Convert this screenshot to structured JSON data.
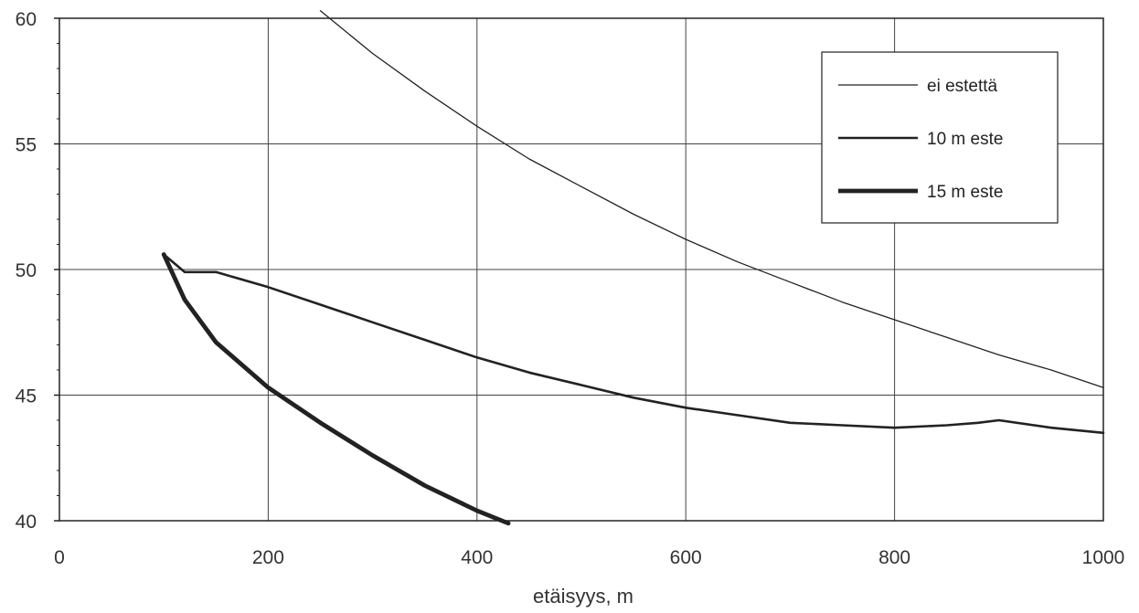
{
  "chart_data": {
    "type": "line",
    "xlabel": "etäisyys, m",
    "ylabel": "",
    "xlim": [
      0,
      1000
    ],
    "ylim": [
      40,
      60
    ],
    "x_ticks": [
      "0",
      "200",
      "400",
      "600",
      "800",
      "1000"
    ],
    "y_ticks": [
      "40",
      "45",
      "50",
      "55",
      "60"
    ],
    "grid": true,
    "legend_position": "top-right",
    "colors": {
      "line": "#222222",
      "grid": "#444444",
      "text": "#333333"
    },
    "series": [
      {
        "name": "ei estettä",
        "stroke_style": "thin",
        "x": [
          250,
          300,
          350,
          400,
          450,
          500,
          550,
          600,
          650,
          700,
          750,
          800,
          850,
          900,
          950,
          1000
        ],
        "y": [
          60.3,
          58.6,
          57.1,
          55.7,
          54.4,
          53.3,
          52.2,
          51.2,
          50.3,
          49.5,
          48.7,
          48.0,
          47.3,
          46.6,
          46.0,
          45.3
        ]
      },
      {
        "name": "10 m este",
        "stroke_style": "medium",
        "x": [
          100,
          120,
          150,
          200,
          250,
          300,
          350,
          400,
          450,
          500,
          550,
          600,
          650,
          700,
          750,
          800,
          850,
          880,
          900,
          950,
          1000
        ],
        "y": [
          50.6,
          49.9,
          49.9,
          49.3,
          48.6,
          47.9,
          47.2,
          46.5,
          45.9,
          45.4,
          44.9,
          44.5,
          44.2,
          43.9,
          43.8,
          43.7,
          43.8,
          43.9,
          44.0,
          43.7,
          43.5
        ]
      },
      {
        "name": "15 m este",
        "stroke_style": "thick",
        "x": [
          100,
          120,
          150,
          200,
          250,
          300,
          350,
          400,
          430
        ],
        "y": [
          50.6,
          48.8,
          47.1,
          45.3,
          43.9,
          42.6,
          41.4,
          40.4,
          39.9
        ]
      }
    ]
  }
}
